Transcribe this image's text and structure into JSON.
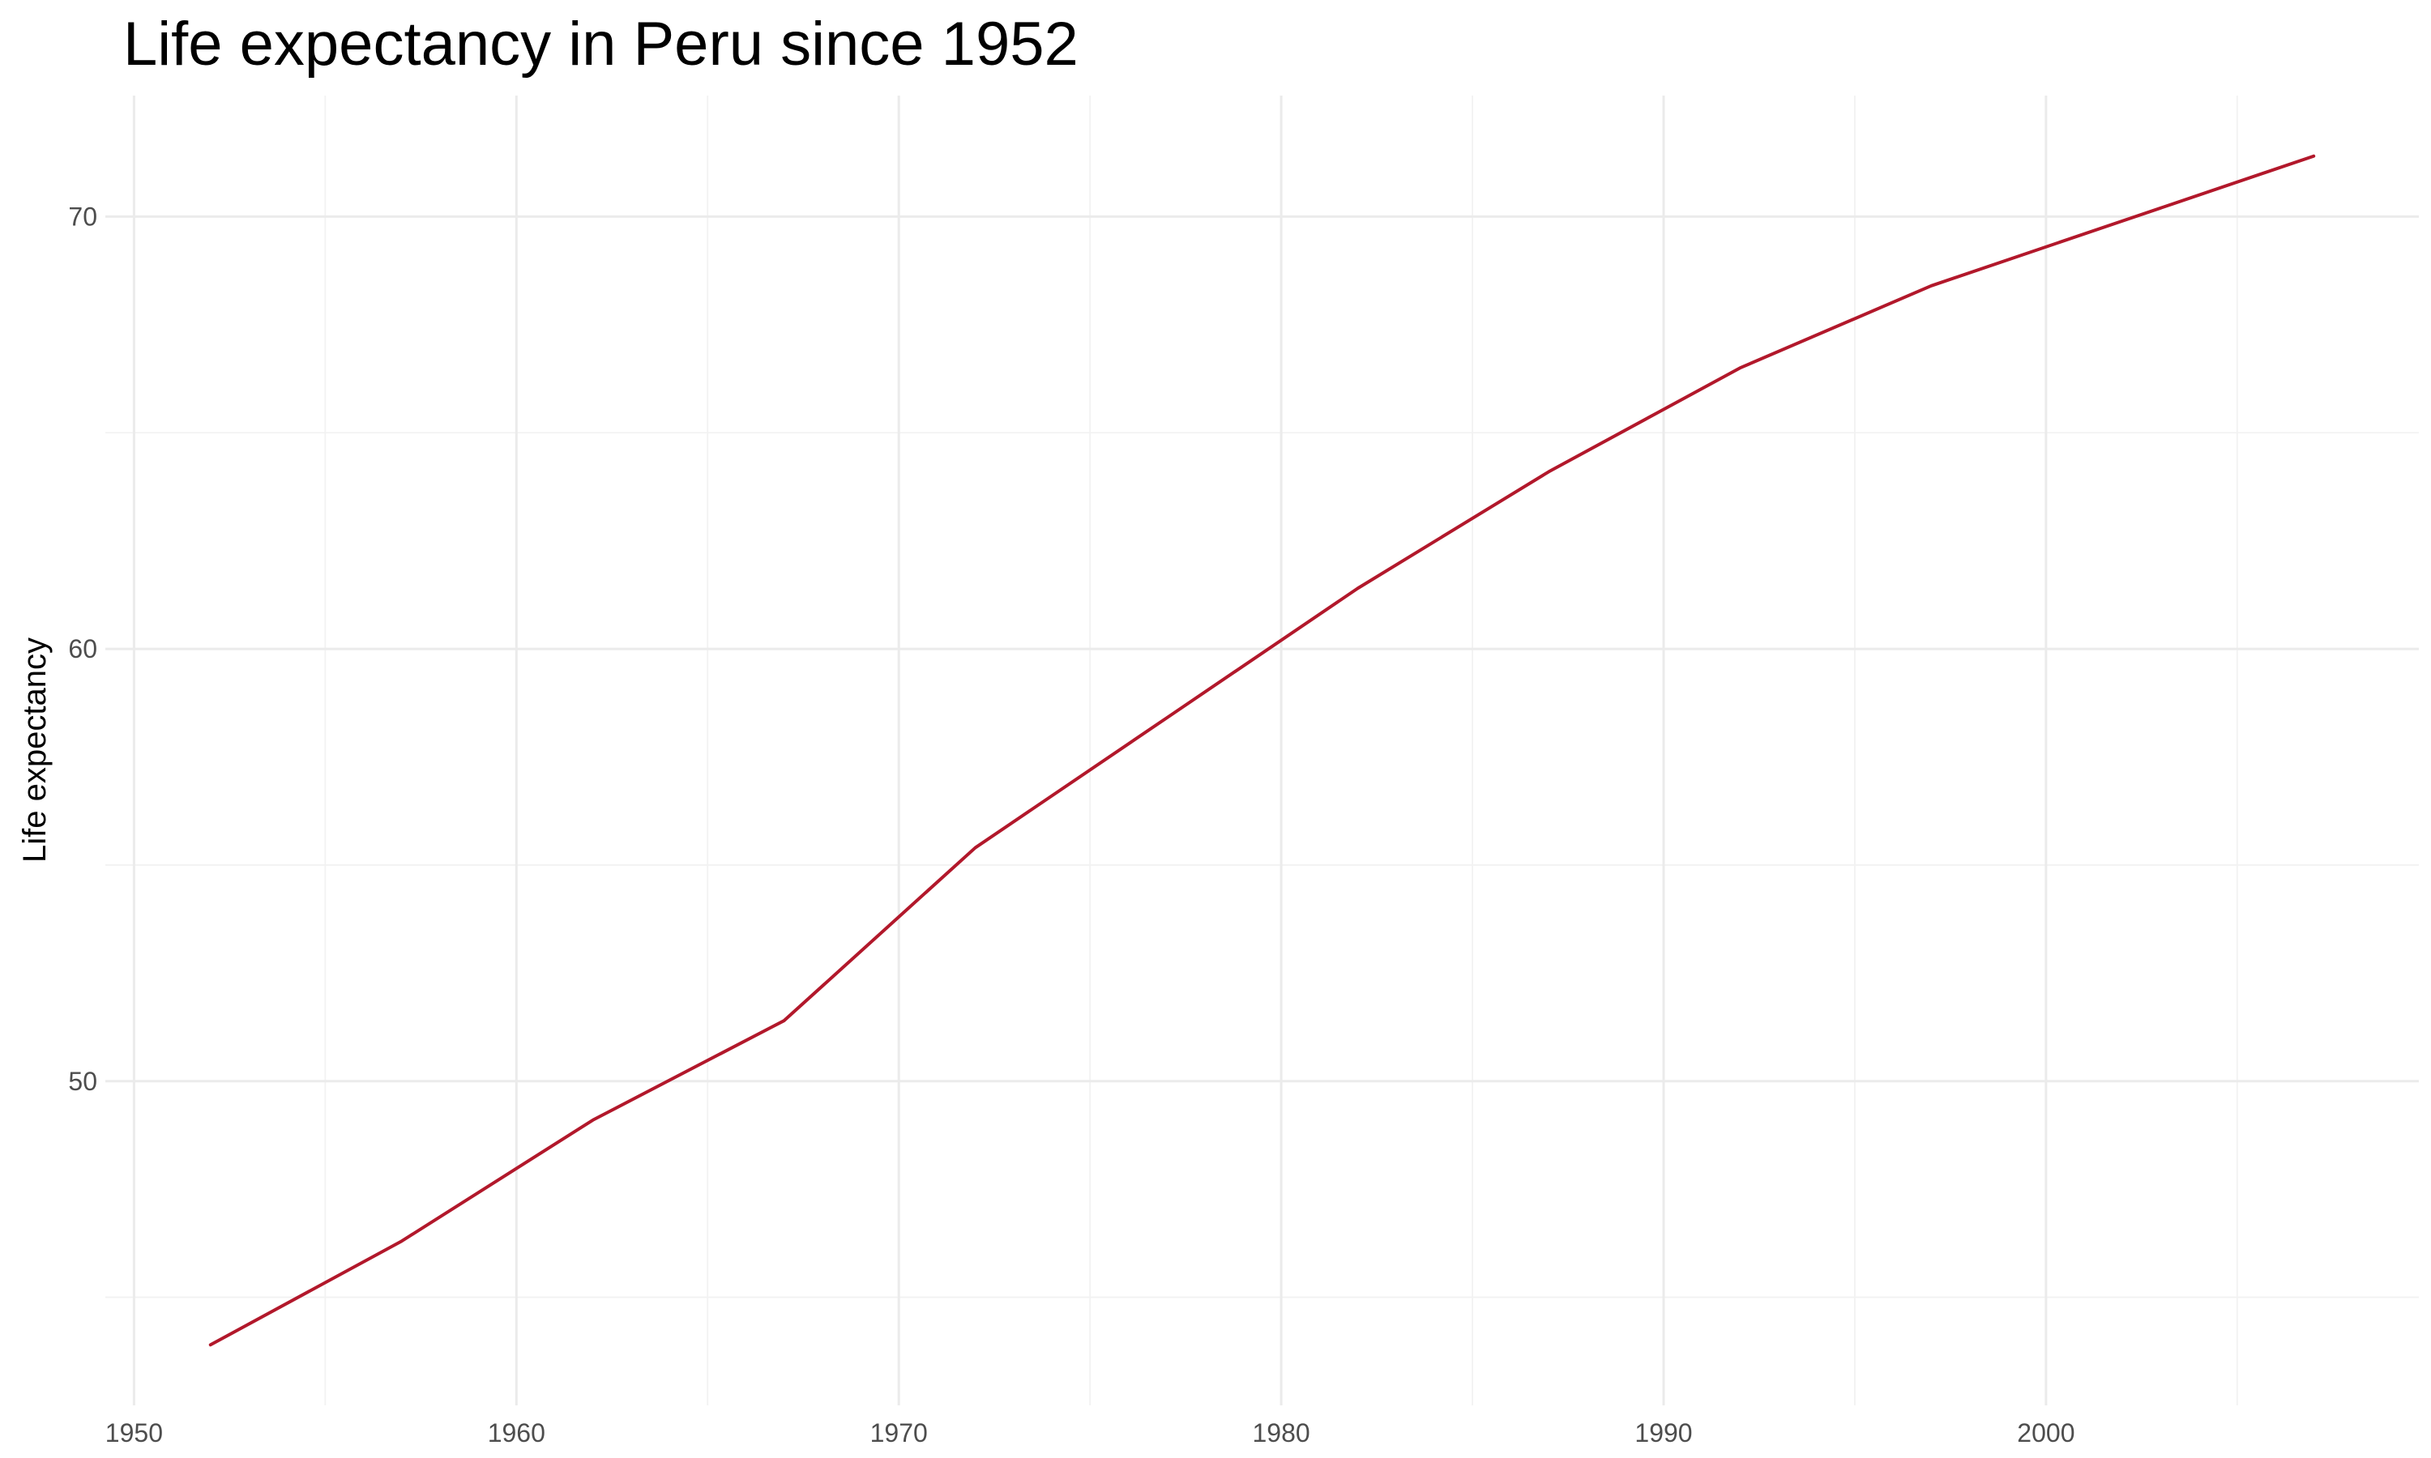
{
  "chart_data": {
    "type": "line",
    "title": "Life expectancy in Peru since 1952",
    "xlabel": "",
    "ylabel": "Life expectancy",
    "x": [
      1952,
      1957,
      1962,
      1967,
      1972,
      1977,
      1982,
      1987,
      1992,
      1997,
      2002,
      2007
    ],
    "series": [
      {
        "values": [
          43.9,
          46.3,
          49.1,
          51.4,
          55.4,
          58.4,
          61.4,
          64.1,
          66.5,
          68.4,
          69.9,
          71.4
        ]
      }
    ],
    "xlim": [
      1949.25,
      2009.75
    ],
    "ylim": [
      42.5,
      72.8
    ],
    "x_ticks": [
      1950,
      1960,
      1970,
      1980,
      1990,
      2000
    ],
    "x_minor_ticks": [
      1955,
      1965,
      1975,
      1985,
      1995,
      2005
    ],
    "y_ticks": [
      50,
      60,
      70
    ],
    "y_minor_ticks": [
      45,
      55,
      65
    ],
    "grid": true,
    "line_color": "#b2182b",
    "grid_color": "#ebebeb"
  }
}
